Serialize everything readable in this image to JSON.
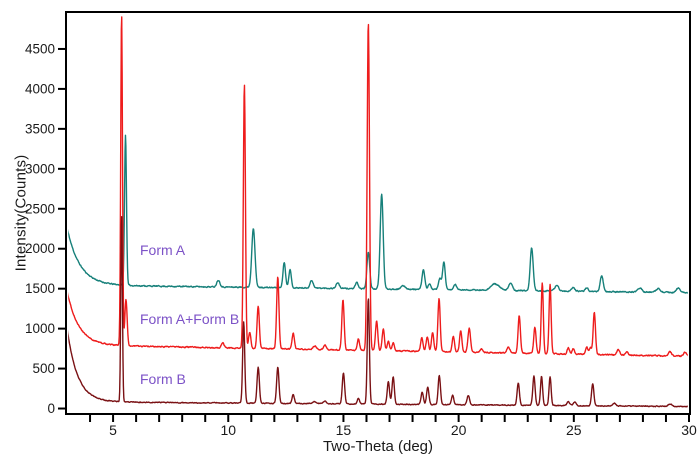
{
  "chart_data": {
    "type": "line",
    "title": "",
    "xlabel": "Two-Theta (deg)",
    "ylabel": "Intensity(Counts)",
    "x_range": [
      3,
      30
    ],
    "ylim": [
      -56,
      4950
    ],
    "x_major_ticks": [
      5,
      10,
      15,
      20,
      25,
      30
    ],
    "x_minor_tick_step": 1,
    "y_ticks": [
      0,
      500,
      1000,
      1500,
      2000,
      2500,
      3000,
      3500,
      4000,
      4500
    ],
    "grid": false,
    "legend_position": "none",
    "frame_color": "#000000",
    "tick_label_color": "#1a1a1a",
    "annotation_color": "#7c52c7",
    "background": "#ffffff",
    "series": [
      {
        "name": "Form A",
        "color": "#17807a",
        "label_pos": {
          "x": 140,
          "y": 242
        },
        "baseline_start": 1545,
        "baseline_end": 1450,
        "decay": {
          "amp": 720,
          "tau": 0.55
        },
        "noise": 5.5,
        "peaks": [
          [
            5.54,
            1880,
            0.042
          ],
          [
            9.57,
            85,
            0.07
          ],
          [
            11.09,
            745,
            0.07
          ],
          [
            12.43,
            320,
            0.055
          ],
          [
            12.68,
            225,
            0.055
          ],
          [
            13.62,
            95,
            0.07
          ],
          [
            14.75,
            70,
            0.07
          ],
          [
            15.58,
            75,
            0.06
          ],
          [
            16.08,
            465,
            0.06
          ],
          [
            16.66,
            1185,
            0.065
          ],
          [
            17.6,
            40,
            0.1
          ],
          [
            18.47,
            245,
            0.06
          ],
          [
            18.73,
            70,
            0.06
          ],
          [
            19.19,
            140,
            0.06
          ],
          [
            19.36,
            350,
            0.055
          ],
          [
            19.85,
            70,
            0.06
          ],
          [
            21.58,
            80,
            0.18
          ],
          [
            22.26,
            95,
            0.08
          ],
          [
            23.17,
            535,
            0.065
          ],
          [
            24.26,
            75,
            0.08
          ],
          [
            24.98,
            45,
            0.07
          ],
          [
            25.56,
            45,
            0.07
          ],
          [
            26.21,
            200,
            0.065
          ],
          [
            27.87,
            50,
            0.09
          ],
          [
            28.67,
            45,
            0.09
          ],
          [
            29.54,
            55,
            0.08
          ]
        ]
      },
      {
        "name": "Form A+Form B",
        "color": "#ee1c1c",
        "label_pos": {
          "x": 140,
          "y": 311
        },
        "baseline_start": 795,
        "baseline_end": 655,
        "decay": {
          "amp": 680,
          "tau": 0.5
        },
        "noise": 5.5,
        "peaks": [
          [
            5.37,
            4160,
            0.038
          ],
          [
            5.56,
            575,
            0.05
          ],
          [
            9.76,
            60,
            0.06
          ],
          [
            10.7,
            3310,
            0.045
          ],
          [
            10.93,
            200,
            0.05
          ],
          [
            11.3,
            530,
            0.05
          ],
          [
            12.15,
            895,
            0.05
          ],
          [
            12.82,
            195,
            0.05
          ],
          [
            13.75,
            45,
            0.07
          ],
          [
            14.2,
            55,
            0.06
          ],
          [
            14.98,
            625,
            0.05
          ],
          [
            15.65,
            145,
            0.05
          ],
          [
            16.08,
            4110,
            0.05
          ],
          [
            16.44,
            365,
            0.05
          ],
          [
            16.73,
            265,
            0.05
          ],
          [
            16.95,
            120,
            0.05
          ],
          [
            17.16,
            100,
            0.05
          ],
          [
            18.4,
            165,
            0.05
          ],
          [
            18.64,
            185,
            0.05
          ],
          [
            18.87,
            245,
            0.05
          ],
          [
            19.15,
            665,
            0.05
          ],
          [
            19.77,
            195,
            0.05
          ],
          [
            20.09,
            265,
            0.05
          ],
          [
            20.46,
            300,
            0.055
          ],
          [
            21.0,
            45,
            0.06
          ],
          [
            22.16,
            75,
            0.06
          ],
          [
            22.63,
            475,
            0.05
          ],
          [
            23.31,
            330,
            0.05
          ],
          [
            23.63,
            890,
            0.045
          ],
          [
            23.97,
            870,
            0.045
          ],
          [
            24.76,
            80,
            0.05
          ],
          [
            24.98,
            65,
            0.05
          ],
          [
            25.56,
            90,
            0.05
          ],
          [
            25.72,
            85,
            0.05
          ],
          [
            25.89,
            525,
            0.05
          ],
          [
            26.93,
            65,
            0.06
          ],
          [
            27.3,
            45,
            0.06
          ],
          [
            29.18,
            50,
            0.07
          ],
          [
            29.83,
            45,
            0.07
          ]
        ]
      },
      {
        "name": "Form B",
        "color": "#7a1114",
        "label_pos": {
          "x": 140,
          "y": 371
        },
        "baseline_start": 85,
        "baseline_end": 25,
        "decay": {
          "amp": 930,
          "tau": 0.45
        },
        "noise": 4,
        "peaks": [
          [
            5.37,
            2350,
            0.035
          ],
          [
            10.67,
            1020,
            0.045
          ],
          [
            11.3,
            450,
            0.05
          ],
          [
            12.15,
            450,
            0.05
          ],
          [
            12.82,
            110,
            0.05
          ],
          [
            13.75,
            25,
            0.07
          ],
          [
            14.2,
            35,
            0.06
          ],
          [
            15.0,
            390,
            0.05
          ],
          [
            15.65,
            70,
            0.05
          ],
          [
            16.08,
            1330,
            0.045
          ],
          [
            16.95,
            280,
            0.05
          ],
          [
            17.16,
            340,
            0.05
          ],
          [
            18.42,
            155,
            0.05
          ],
          [
            18.66,
            220,
            0.05
          ],
          [
            19.16,
            365,
            0.05
          ],
          [
            19.74,
            115,
            0.05
          ],
          [
            20.42,
            120,
            0.055
          ],
          [
            22.59,
            280,
            0.05
          ],
          [
            23.27,
            365,
            0.05
          ],
          [
            23.6,
            365,
            0.045
          ],
          [
            23.97,
            365,
            0.045
          ],
          [
            24.76,
            50,
            0.06
          ],
          [
            25.05,
            45,
            0.06
          ],
          [
            25.82,
            275,
            0.05
          ],
          [
            26.75,
            35,
            0.07
          ],
          [
            29.18,
            30,
            0.08
          ]
        ]
      }
    ]
  }
}
